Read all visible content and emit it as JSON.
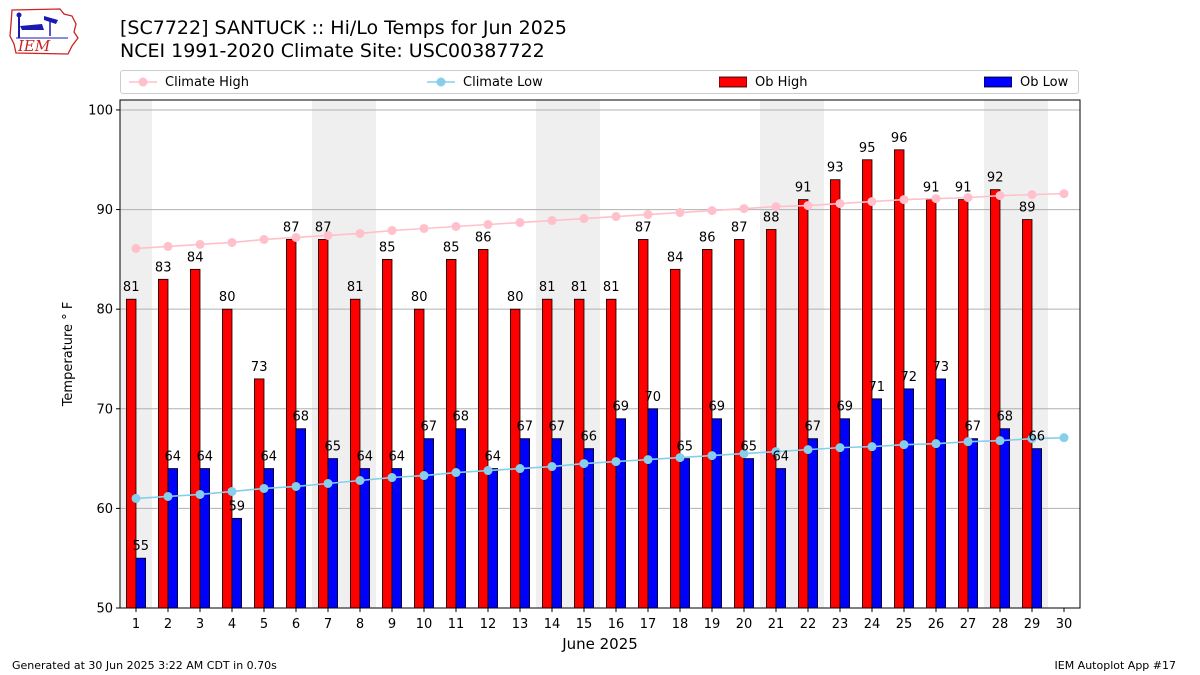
{
  "header": {
    "title_line1": "[SC7722] SANTUCK :: Hi/Lo Temps for Jun 2025",
    "title_line2": "NCEI 1991-2020 Climate Site: USC00387722",
    "logo_text": "IEM"
  },
  "legend": {
    "items": [
      {
        "label": "Climate High",
        "color": "#ffc0cb",
        "kind": "line"
      },
      {
        "label": "Climate Low",
        "color": "#87ceeb",
        "kind": "line"
      },
      {
        "label": "Ob High",
        "color": "#ff0000",
        "kind": "bar"
      },
      {
        "label": "Ob Low",
        "color": "#0000ff",
        "kind": "bar"
      }
    ]
  },
  "footer": {
    "left": "Generated at 30 Jun 2025 3:22 AM CDT in 0.70s",
    "right": "IEM Autoplot App #17"
  },
  "chart_data": {
    "type": "bar",
    "xlabel": "June 2025",
    "ylabel": "Temperature ° F",
    "ylim": [
      50,
      101
    ],
    "yticks": [
      50,
      60,
      70,
      80,
      90,
      100
    ],
    "grid": "horizontal",
    "legend_position": "top",
    "weekend_shading": [
      [
        1,
        1
      ],
      [
        7,
        8
      ],
      [
        14,
        15
      ],
      [
        21,
        22
      ],
      [
        28,
        29
      ]
    ],
    "categories": [
      1,
      2,
      3,
      4,
      5,
      6,
      7,
      8,
      9,
      10,
      11,
      12,
      13,
      14,
      15,
      16,
      17,
      18,
      19,
      20,
      21,
      22,
      23,
      24,
      25,
      26,
      27,
      28,
      29,
      30
    ],
    "series": [
      {
        "name": "Ob High",
        "color": "#ff0000",
        "kind": "bar",
        "values": [
          81,
          83,
          84,
          80,
          73,
          87,
          87,
          81,
          85,
          80,
          85,
          86,
          80,
          81,
          81,
          81,
          87,
          84,
          86,
          87,
          88,
          91,
          93,
          95,
          96,
          91,
          91,
          92,
          89,
          null
        ]
      },
      {
        "name": "Ob Low",
        "color": "#0000ff",
        "kind": "bar",
        "values": [
          55,
          64,
          64,
          59,
          64,
          68,
          65,
          64,
          64,
          67,
          68,
          64,
          67,
          67,
          66,
          69,
          70,
          65,
          69,
          65,
          64,
          67,
          69,
          71,
          72,
          73,
          67,
          68,
          66,
          null
        ]
      },
      {
        "name": "Climate High",
        "color": "#ffc0cb",
        "kind": "line",
        "values": [
          86.1,
          86.3,
          86.5,
          86.7,
          87.0,
          87.2,
          87.4,
          87.6,
          87.9,
          88.1,
          88.3,
          88.5,
          88.7,
          88.9,
          89.1,
          89.3,
          89.5,
          89.7,
          89.9,
          90.1,
          90.3,
          90.4,
          90.6,
          90.8,
          91.0,
          91.1,
          91.2,
          91.4,
          91.5,
          91.6
        ]
      },
      {
        "name": "Climate Low",
        "color": "#87ceeb",
        "kind": "line",
        "values": [
          61.0,
          61.2,
          61.4,
          61.7,
          62.0,
          62.2,
          62.5,
          62.8,
          63.1,
          63.3,
          63.6,
          63.8,
          64.0,
          64.2,
          64.5,
          64.7,
          64.9,
          65.1,
          65.3,
          65.5,
          65.7,
          65.9,
          66.1,
          66.2,
          66.4,
          66.5,
          66.7,
          66.8,
          67.0,
          67.1
        ]
      }
    ]
  }
}
